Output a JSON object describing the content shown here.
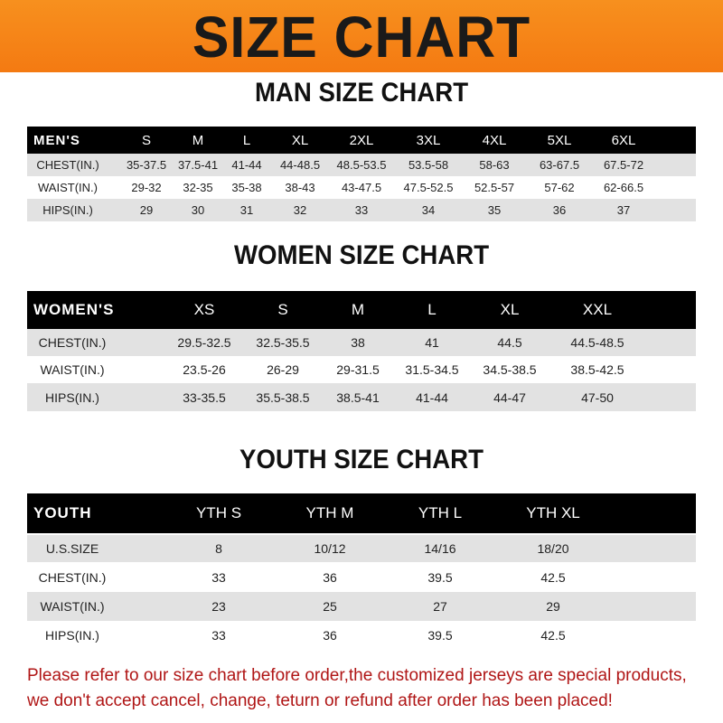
{
  "title": "SIZE CHART",
  "colors": {
    "banner": "#f47f16",
    "header_row": "#000000",
    "alt_row": "#e2e2e2",
    "notice": "#b01616"
  },
  "sections": [
    {
      "title": "MAN SIZE CHART",
      "header": [
        "MEN'S",
        "S",
        "M",
        "L",
        "XL",
        "2XL",
        "3XL",
        "4XL",
        "5XL",
        "6XL"
      ],
      "rows": [
        [
          "CHEST(IN.)",
          "35-37.5",
          "37.5-41",
          "41-44",
          "44-48.5",
          "48.5-53.5",
          "53.5-58",
          "58-63",
          "63-67.5",
          "67.5-72"
        ],
        [
          "WAIST(IN.)",
          "29-32",
          "32-35",
          "35-38",
          "38-43",
          "43-47.5",
          "47.5-52.5",
          "52.5-57",
          "57-62",
          "62-66.5"
        ],
        [
          "HIPS(IN.)",
          "29",
          "30",
          "31",
          "32",
          "33",
          "34",
          "35",
          "36",
          "37"
        ]
      ]
    },
    {
      "title": "WOMEN SIZE CHART",
      "header": [
        "WOMEN'S",
        "XS",
        "S",
        "M",
        "L",
        "XL",
        "XXL"
      ],
      "rows": [
        [
          "CHEST(IN.)",
          "29.5-32.5",
          "32.5-35.5",
          "38",
          "41",
          "44.5",
          "44.5-48.5"
        ],
        [
          "WAIST(IN.)",
          "23.5-26",
          "26-29",
          "29-31.5",
          "31.5-34.5",
          "34.5-38.5",
          "38.5-42.5"
        ],
        [
          "HIPS(IN.)",
          "33-35.5",
          "35.5-38.5",
          "38.5-41",
          "41-44",
          "44-47",
          "47-50"
        ]
      ]
    },
    {
      "title": "YOUTH SIZE CHART",
      "header": [
        "YOUTH",
        "YTH S",
        "YTH M",
        "YTH L",
        "YTH XL"
      ],
      "rows": [
        [
          "U.S.SIZE",
          "8",
          "10/12",
          "14/16",
          "18/20"
        ],
        [
          "CHEST(IN.)",
          "33",
          "36",
          "39.5",
          "42.5"
        ],
        [
          "WAIST(IN.)",
          "23",
          "25",
          "27",
          "29"
        ],
        [
          "HIPS(IN.)",
          "33",
          "36",
          "39.5",
          "42.5"
        ]
      ]
    }
  ],
  "notice": [
    "Please refer to our size chart before order,the customized jerseys are special products,",
    "we don't accept cancel, change, teturn or refund after order has been placed!"
  ]
}
